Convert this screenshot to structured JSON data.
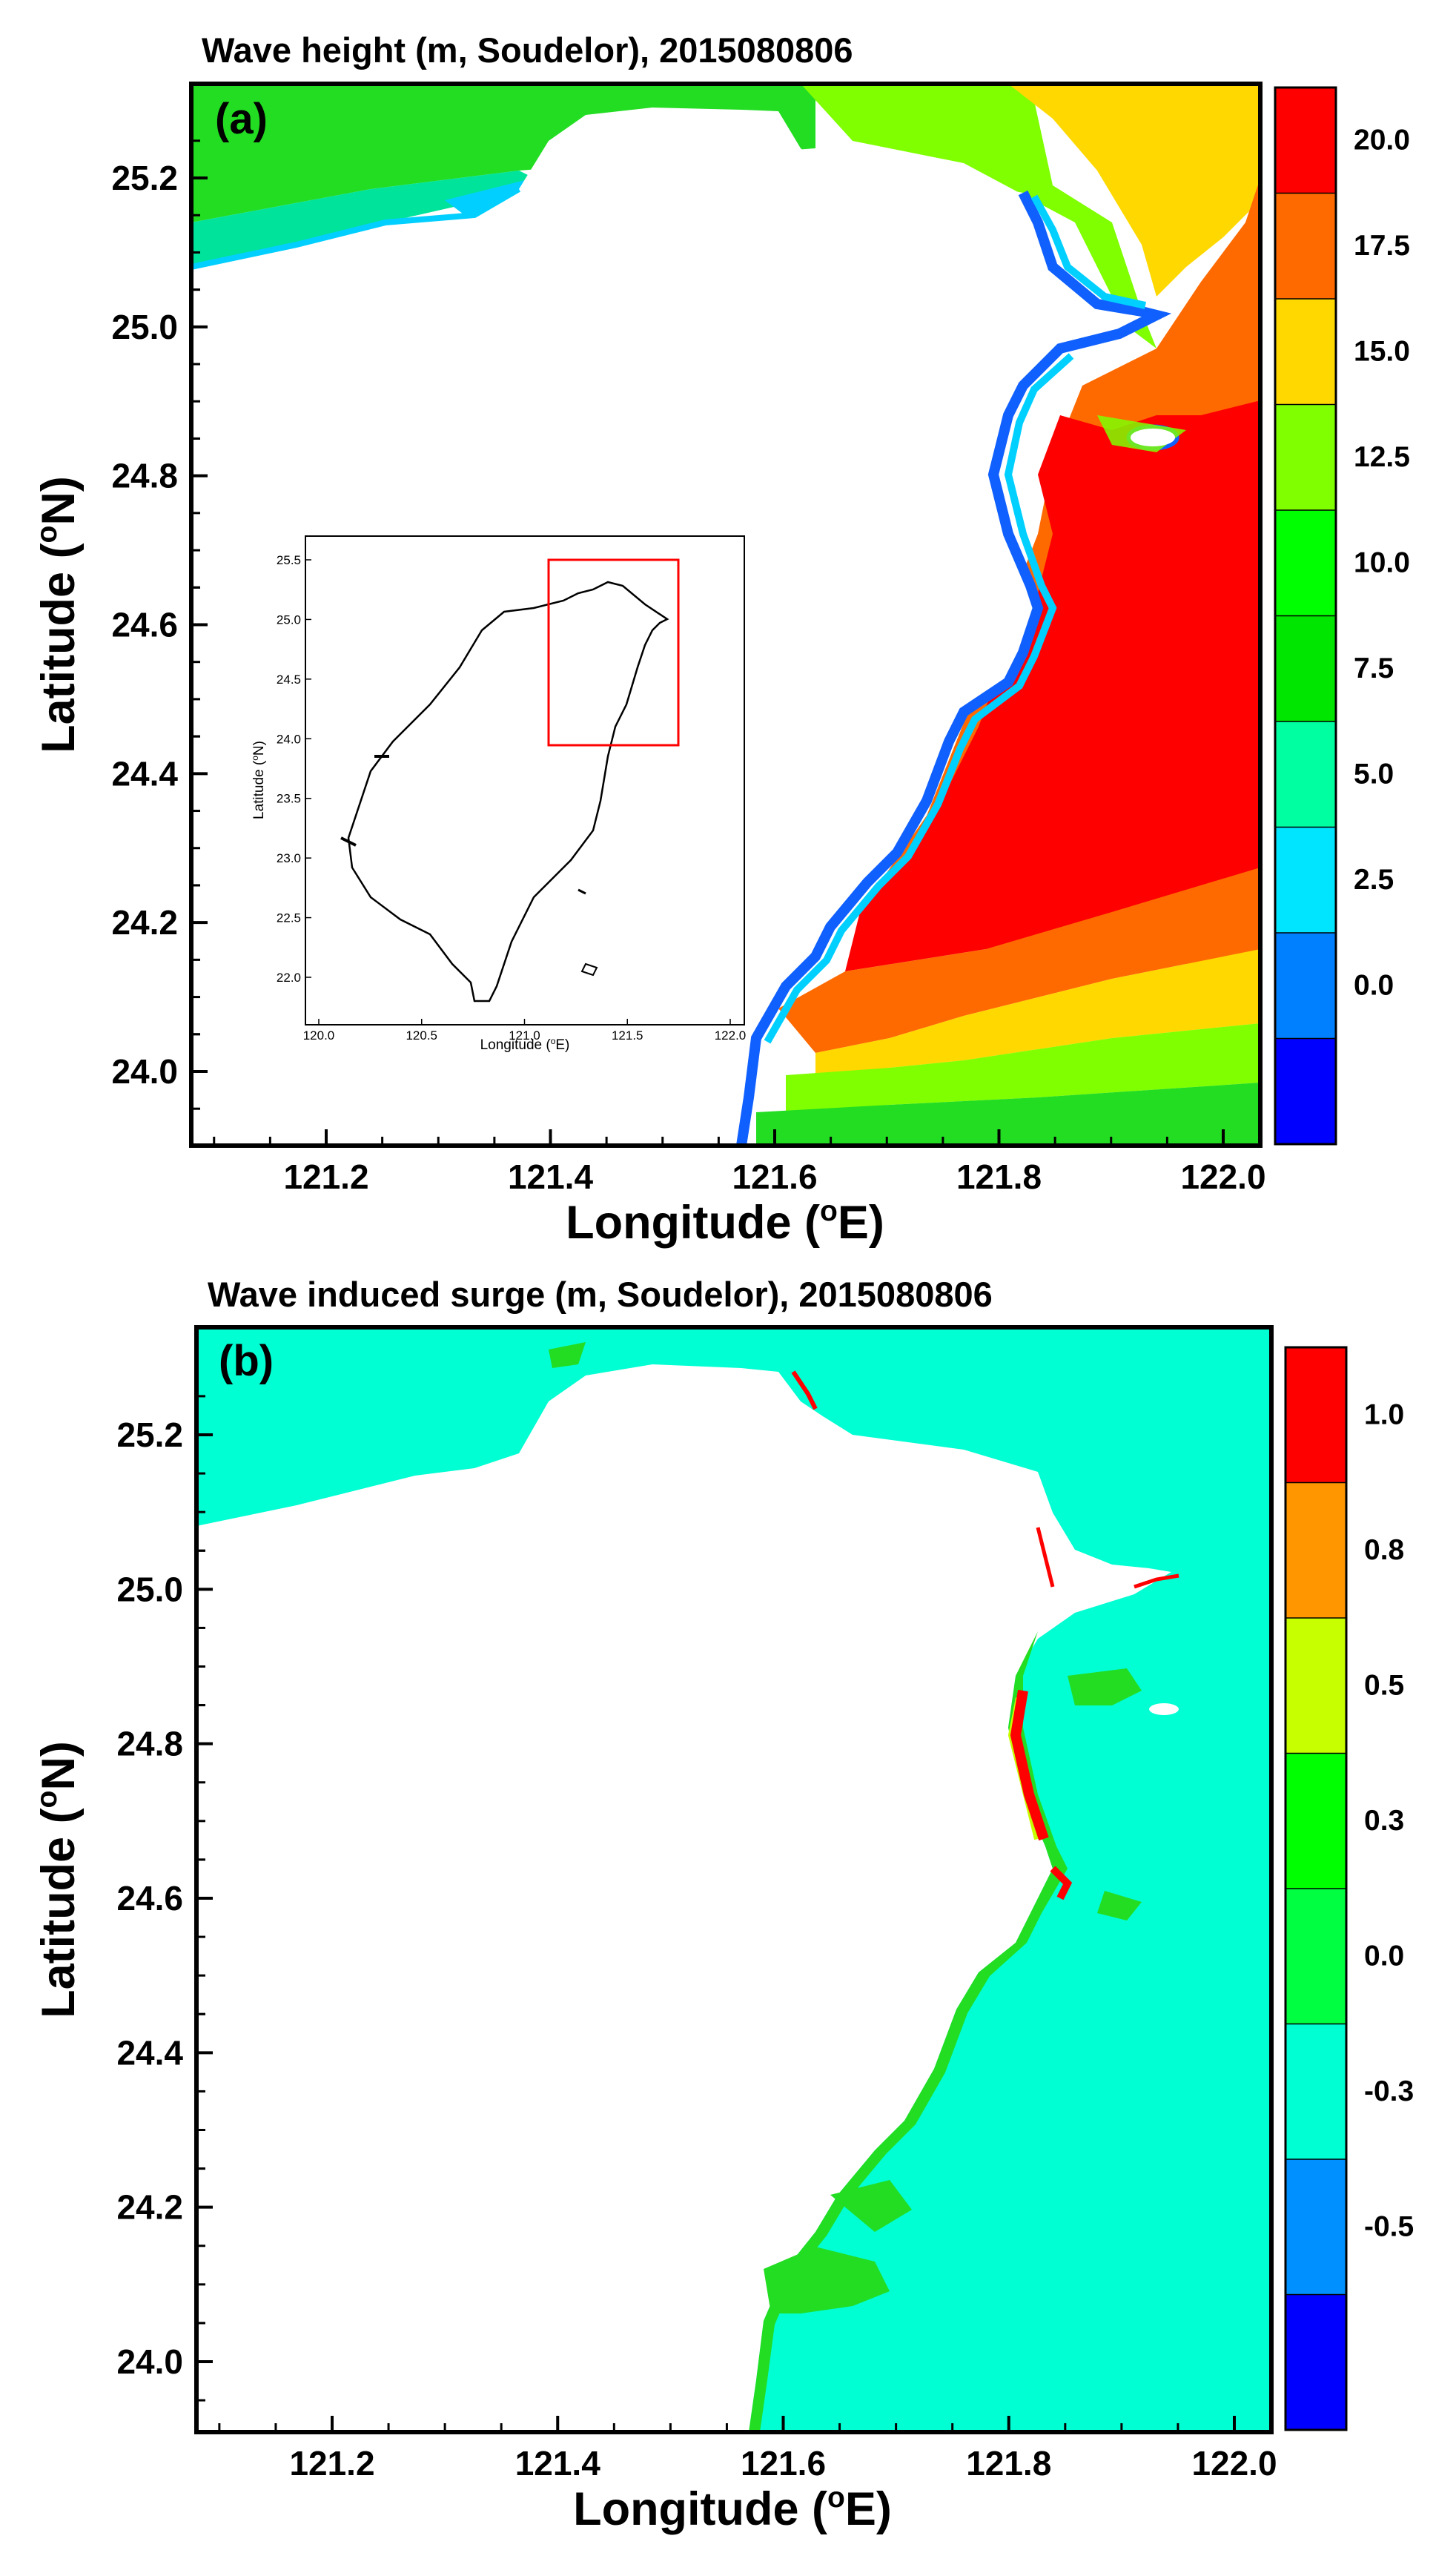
{
  "panels": [
    {
      "id": "a",
      "label": "(a)",
      "title": "Wave height (m, Soudelor), 2015080806",
      "xlabel": "Longitude (°E)",
      "ylabel": "Latitude (°N)",
      "xticks": [
        "121.2",
        "121.4",
        "121.6",
        "121.8",
        "122.0"
      ],
      "yticks": [
        "25.2",
        "25.0",
        "24.8",
        "24.6",
        "24.4",
        "24.2",
        "24.0"
      ],
      "colorbar": {
        "labels": [
          "20.0",
          "17.5",
          "15.0",
          "12.5",
          "10.0",
          "7.5",
          "5.0",
          "2.5",
          "0.0"
        ],
        "colors": [
          "#ff0000",
          "#ff6a00",
          "#ffd800",
          "#7fff00",
          "#00ff00",
          "#00e600",
          "#00ffa0",
          "#00e5ff",
          "#0080ff",
          "#0000ff"
        ]
      },
      "inset": {
        "xlabel": "Longitude (°E)",
        "ylabel": "Latitude (°N)",
        "xticks": [
          "120.0",
          "120.5",
          "121.0",
          "121.5",
          "122.0"
        ],
        "yticks": [
          "25.5",
          "25.0",
          "24.5",
          "24.0",
          "23.5",
          "23.0",
          "22.5",
          "22.0"
        ]
      }
    },
    {
      "id": "b",
      "label": "(b)",
      "title": "Wave induced surge (m, Soudelor), 2015080806",
      "xlabel": "Longitude (°E)",
      "ylabel": "Latitude (°N)",
      "xticks": [
        "121.2",
        "121.4",
        "121.6",
        "121.8",
        "122.0"
      ],
      "yticks": [
        "25.2",
        "25.0",
        "24.8",
        "24.6",
        "24.4",
        "24.2",
        "24.0"
      ],
      "colorbar": {
        "labels": [
          "1.0",
          "0.8",
          "0.5",
          "0.3",
          "0.0",
          "-0.3",
          "-0.5"
        ],
        "colors": [
          "#ff0000",
          "#ff9600",
          "#c8ff00",
          "#00ff00",
          "#00ff40",
          "#00ffd2",
          "#0090ff",
          "#0000ff"
        ]
      }
    }
  ]
}
